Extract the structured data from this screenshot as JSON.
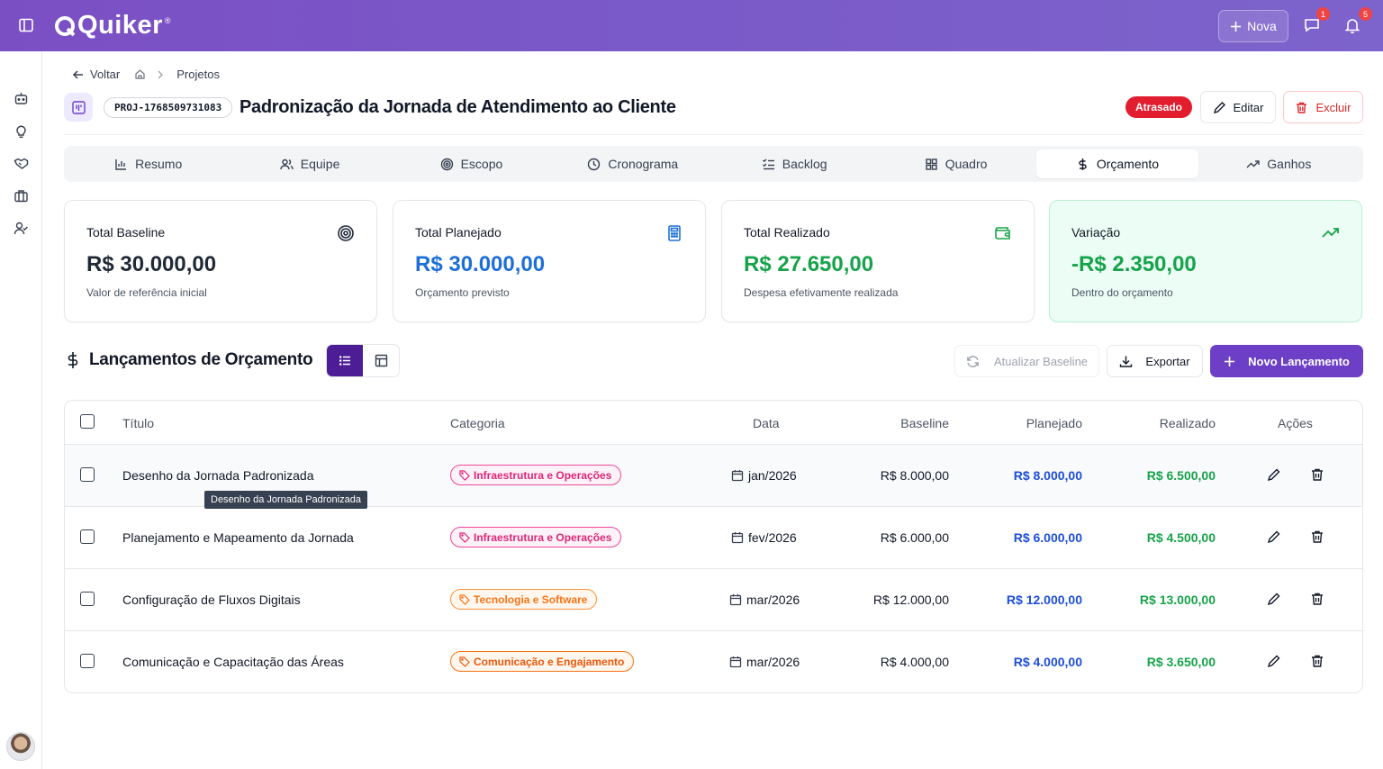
{
  "app": {
    "name": "Quiker",
    "reg": "®"
  },
  "topbar": {
    "new_label": "Nova",
    "messages_count": "1",
    "notifications_count": "5"
  },
  "breadcrumb": {
    "back": "Voltar",
    "current": "Projetos"
  },
  "project": {
    "code": "PROJ-1768509731083",
    "title": "Padronização da Jornada de Atendimento ao Cliente",
    "status": "Atrasado",
    "edit_label": "Editar",
    "delete_label": "Excluir"
  },
  "tabs": [
    {
      "label": "Resumo",
      "icon": "bar-chart-icon"
    },
    {
      "label": "Equipe",
      "icon": "users-icon"
    },
    {
      "label": "Escopo",
      "icon": "target-icon"
    },
    {
      "label": "Cronograma",
      "icon": "clock-icon"
    },
    {
      "label": "Backlog",
      "icon": "list-checks-icon"
    },
    {
      "label": "Quadro",
      "icon": "grid-icon"
    },
    {
      "label": "Orçamento",
      "icon": "dollar-icon",
      "active": true
    },
    {
      "label": "Ganhos",
      "icon": "trending-up-icon"
    }
  ],
  "cards": [
    {
      "label": "Total Baseline",
      "value": "R$ 30.000,00",
      "sub": "Valor de referência inicial",
      "color": "#1f2937",
      "icon": "target-icon"
    },
    {
      "label": "Total Planejado",
      "value": "R$ 30.000,00",
      "sub": "Orçamento previsto",
      "color": "#1d6fd8",
      "icon": "calculator-icon"
    },
    {
      "label": "Total Realizado",
      "value": "R$ 27.650,00",
      "sub": "Despesa efetivamente realizada",
      "color": "#16a34a",
      "icon": "wallet-icon"
    },
    {
      "label": "Variação",
      "value": "-R$ 2.350,00",
      "sub": "Dentro do orçamento",
      "color": "#16a34a",
      "icon": "trending-up-icon"
    }
  ],
  "section": {
    "title": "Lançamentos de Orçamento",
    "refresh_label": "Atualizar Baseline",
    "export_label": "Exportar",
    "new_label": "Novo Lançamento"
  },
  "table": {
    "headers": {
      "title": "Título",
      "category": "Categoria",
      "date": "Data",
      "baseline": "Baseline",
      "planned": "Planejado",
      "actual": "Realizado",
      "actions": "Ações"
    },
    "rows": [
      {
        "title": "Desenho da Jornada Padronizada",
        "category": "Infraestrutura e Operações",
        "date": "jan/2026",
        "baseline": "R$ 8.000,00",
        "planned": "R$ 8.000,00",
        "actual": "R$ 6.500,00"
      },
      {
        "title": "Planejamento e Mapeamento da Jornada",
        "category": "Infraestrutura e Operações",
        "date": "fev/2026",
        "baseline": "R$ 6.000,00",
        "planned": "R$ 6.000,00",
        "actual": "R$ 4.500,00"
      },
      {
        "title": "Configuração de Fluxos Digitais",
        "category": "Tecnologia e Software",
        "date": "mar/2026",
        "baseline": "R$ 12.000,00",
        "planned": "R$ 12.000,00",
        "actual": "R$ 13.000,00"
      },
      {
        "title": "Comunicação e Capacitação das Áreas",
        "category": "Comunicação e Engajamento",
        "date": "mar/2026",
        "baseline": "R$ 4.000,00",
        "planned": "R$ 4.000,00",
        "actual": "R$ 3.650,00"
      }
    ]
  },
  "tooltip": "Desenho da Jornada Padronizada",
  "colors": {
    "brand": "#7b4fc4",
    "danger": "#e11d2e",
    "primary": "#6d3fc6"
  }
}
